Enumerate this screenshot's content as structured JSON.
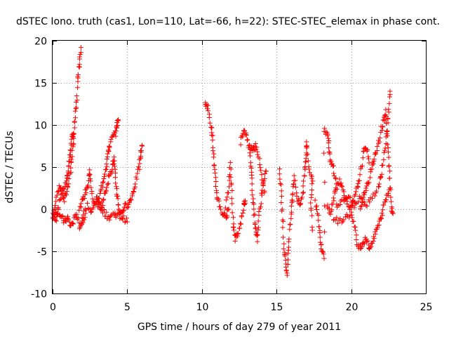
{
  "chart_data": {
    "type": "scatter",
    "title": "dSTEC Iono. truth (cas1, Lon=110, Lat=-66, h=22): STEC-STEC_elemax in phase cont.",
    "xlabel": "GPS time / hours of day 279 of year 2011",
    "ylabel": "dSTEC  / TECUs",
    "xlim": [
      0,
      25
    ],
    "ylim": [
      -10,
      20
    ],
    "xticks": [
      0,
      5,
      10,
      15,
      20,
      25
    ],
    "yticks": [
      -10,
      -5,
      0,
      5,
      10,
      15,
      20
    ],
    "xtick_labels": [
      "0",
      "5",
      "10",
      "15",
      "20",
      "25"
    ],
    "ytick_labels": [
      "-10",
      "-5",
      "0",
      "5",
      "10",
      "15",
      "20"
    ],
    "grid": true,
    "marker": "+",
    "color": "#ff0000",
    "tracks": [
      [
        [
          0.0,
          0.0
        ],
        [
          0.2,
          -1.5
        ],
        [
          0.4,
          0.5
        ],
        [
          0.6,
          2.0
        ],
        [
          0.8,
          1.0
        ],
        [
          1.0,
          2.5
        ],
        [
          1.2,
          4.5
        ],
        [
          1.3,
          6.5
        ],
        [
          1.4,
          8.0
        ],
        [
          1.5,
          10.5
        ],
        [
          1.6,
          12.5
        ],
        [
          1.7,
          15.5
        ],
        [
          1.8,
          17.5
        ],
        [
          1.9,
          19.2
        ]
      ],
      [
        [
          0.1,
          0.2
        ],
        [
          0.3,
          1.5
        ],
        [
          0.5,
          2.8
        ],
        [
          0.7,
          2.0
        ],
        [
          0.9,
          3.0
        ],
        [
          1.0,
          4.0
        ],
        [
          1.1,
          5.5
        ],
        [
          1.2,
          7.0
        ],
        [
          1.3,
          8.5
        ],
        [
          1.4,
          9.0
        ]
      ],
      [
        [
          0.0,
          -1.0
        ],
        [
          0.2,
          -0.5
        ],
        [
          0.4,
          -0.2
        ],
        [
          0.6,
          -1.0
        ],
        [
          0.8,
          -1.5
        ],
        [
          1.0,
          -1.0
        ],
        [
          1.2,
          -2.0
        ],
        [
          1.4,
          -1.5
        ],
        [
          1.6,
          -0.5
        ],
        [
          1.8,
          -2.0
        ],
        [
          2.0,
          -1.5
        ],
        [
          2.2,
          -0.5
        ]
      ],
      [
        [
          1.8,
          0.0
        ],
        [
          2.0,
          1.0
        ],
        [
          2.2,
          2.0
        ],
        [
          2.4,
          3.0
        ],
        [
          2.5,
          4.8
        ],
        [
          2.6,
          2.0
        ],
        [
          2.8,
          0.5
        ],
        [
          3.0,
          1.5
        ],
        [
          3.2,
          0.0
        ]
      ],
      [
        [
          2.0,
          -1.0
        ],
        [
          2.3,
          0.5
        ],
        [
          2.6,
          -0.5
        ],
        [
          2.9,
          1.0
        ],
        [
          3.2,
          0.5
        ],
        [
          3.5,
          -0.5
        ],
        [
          3.8,
          -1.0
        ],
        [
          4.1,
          -0.5
        ],
        [
          4.4,
          -0.8
        ],
        [
          4.7,
          -1.0
        ],
        [
          5.0,
          -1.5
        ]
      ],
      [
        [
          3.0,
          0.5
        ],
        [
          3.2,
          2.0
        ],
        [
          3.4,
          3.5
        ],
        [
          3.6,
          5.0
        ],
        [
          3.7,
          6.5
        ],
        [
          3.8,
          7.5
        ],
        [
          4.0,
          8.5
        ],
        [
          4.2,
          9.0
        ],
        [
          4.3,
          10.0
        ],
        [
          4.4,
          10.5
        ]
      ],
      [
        [
          3.2,
          0.0
        ],
        [
          3.4,
          1.0
        ],
        [
          3.6,
          2.5
        ],
        [
          3.8,
          4.0
        ],
        [
          4.0,
          5.0
        ],
        [
          4.1,
          6.0
        ],
        [
          4.2,
          4.0
        ],
        [
          4.3,
          2.0
        ],
        [
          4.4,
          0.5
        ]
      ],
      [
        [
          4.4,
          0.0
        ],
        [
          4.6,
          -0.5
        ],
        [
          4.8,
          0.3
        ],
        [
          5.0,
          0.5
        ],
        [
          5.2,
          1.0
        ],
        [
          5.4,
          2.0
        ],
        [
          5.6,
          3.5
        ],
        [
          5.8,
          5.0
        ],
        [
          5.9,
          6.5
        ],
        [
          6.0,
          7.5
        ]
      ],
      [
        [
          10.2,
          12.8
        ],
        [
          10.4,
          12.0
        ],
        [
          10.6,
          10.0
        ],
        [
          10.7,
          8.5
        ],
        [
          10.8,
          6.0
        ],
        [
          10.9,
          3.5
        ],
        [
          11.0,
          1.5
        ],
        [
          11.2,
          0.5
        ],
        [
          11.4,
          -0.5
        ],
        [
          11.6,
          -1.0
        ],
        [
          11.8,
          0.0
        ]
      ],
      [
        [
          11.6,
          0.5
        ],
        [
          11.8,
          2.5
        ],
        [
          11.9,
          5.5
        ],
        [
          12.0,
          2.0
        ],
        [
          12.1,
          -1.5
        ],
        [
          12.2,
          -3.5
        ],
        [
          12.4,
          -3.0
        ],
        [
          12.6,
          -1.5
        ],
        [
          12.8,
          0.5
        ],
        [
          12.9,
          1.0
        ]
      ],
      [
        [
          12.6,
          8.0
        ],
        [
          12.8,
          9.5
        ],
        [
          13.0,
          9.0
        ],
        [
          13.2,
          6.5
        ],
        [
          13.3,
          4.5
        ],
        [
          13.4,
          2.0
        ],
        [
          13.5,
          -0.5
        ],
        [
          13.6,
          -2.5
        ],
        [
          13.7,
          -3.5
        ],
        [
          13.8,
          -1.0
        ],
        [
          14.0,
          1.5
        ],
        [
          14.1,
          3.0
        ],
        [
          14.3,
          4.5
        ]
      ],
      [
        [
          13.2,
          7.5
        ],
        [
          13.4,
          7.0
        ],
        [
          13.6,
          7.5
        ],
        [
          13.8,
          6.5
        ],
        [
          14.0,
          4.0
        ],
        [
          14.2,
          2.0
        ]
      ],
      [
        [
          15.2,
          5.0
        ],
        [
          15.3,
          2.0
        ],
        [
          15.4,
          -1.0
        ],
        [
          15.5,
          -4.5
        ],
        [
          15.6,
          -6.0
        ],
        [
          15.7,
          -7.8
        ],
        [
          15.8,
          -5.0
        ],
        [
          15.9,
          -2.0
        ],
        [
          16.0,
          0.5
        ],
        [
          16.1,
          2.0
        ],
        [
          16.2,
          4.0
        ],
        [
          16.4,
          1.0
        ],
        [
          16.6,
          0.5
        ],
        [
          16.8,
          2.0
        ]
      ],
      [
        [
          16.8,
          3.0
        ],
        [
          16.9,
          5.0
        ],
        [
          17.0,
          6.5
        ],
        [
          17.0,
          8.0
        ],
        [
          17.2,
          4.5
        ],
        [
          17.4,
          3.5
        ],
        [
          17.3,
          1.0
        ],
        [
          17.4,
          -2.5
        ]
      ],
      [
        [
          17.6,
          1.0
        ],
        [
          17.8,
          -1.0
        ],
        [
          17.9,
          -3.0
        ],
        [
          18.0,
          -4.5
        ],
        [
          18.2,
          -5.5
        ],
        [
          18.2,
          9.5
        ],
        [
          18.4,
          9.0
        ],
        [
          18.5,
          7.5
        ],
        [
          18.6,
          5.5
        ],
        [
          18.8,
          5.0
        ],
        [
          19.0,
          3.0
        ]
      ],
      [
        [
          18.4,
          0.5
        ],
        [
          18.6,
          -0.5
        ],
        [
          18.8,
          1.0
        ],
        [
          19.0,
          2.5
        ],
        [
          19.2,
          3.5
        ],
        [
          19.4,
          2.5
        ],
        [
          19.6,
          1.5
        ],
        [
          19.8,
          0.5
        ],
        [
          20.0,
          0.0
        ],
        [
          20.2,
          1.0
        ],
        [
          20.4,
          2.5
        ],
        [
          20.6,
          4.0
        ],
        [
          20.8,
          6.5
        ],
        [
          21.0,
          7.5
        ],
        [
          21.2,
          5.5
        ]
      ],
      [
        [
          18.8,
          -1.0
        ],
        [
          19.2,
          -1.5
        ],
        [
          19.6,
          -1.0
        ],
        [
          20.0,
          -0.5
        ],
        [
          20.2,
          -2.0
        ],
        [
          20.4,
          -4.0
        ],
        [
          20.6,
          -4.5
        ],
        [
          20.8,
          -4.0
        ],
        [
          21.0,
          -3.5
        ],
        [
          21.2,
          -4.5
        ],
        [
          21.4,
          -4.0
        ],
        [
          21.6,
          -3.0
        ],
        [
          21.8,
          -2.0
        ],
        [
          22.0,
          -1.0
        ],
        [
          22.2,
          0.5
        ],
        [
          22.4,
          1.5
        ],
        [
          22.6,
          2.5
        ]
      ],
      [
        [
          19.0,
          0.5
        ],
        [
          19.4,
          1.0
        ],
        [
          19.8,
          1.5
        ],
        [
          20.2,
          0.5
        ],
        [
          20.6,
          1.5
        ],
        [
          21.0,
          0.5
        ],
        [
          21.4,
          1.5
        ],
        [
          21.8,
          2.5
        ],
        [
          22.0,
          4.0
        ],
        [
          22.2,
          6.5
        ],
        [
          22.4,
          9.0
        ],
        [
          22.5,
          11.5
        ],
        [
          22.6,
          14.0
        ]
      ],
      [
        [
          20.6,
          0.0
        ],
        [
          20.8,
          1.5
        ],
        [
          21.0,
          2.5
        ],
        [
          21.2,
          3.5
        ],
        [
          21.4,
          5.0
        ],
        [
          21.6,
          6.5
        ],
        [
          21.8,
          7.5
        ],
        [
          22.0,
          9.5
        ],
        [
          22.2,
          10.5
        ],
        [
          22.3,
          11.5
        ],
        [
          22.4,
          9.0
        ],
        [
          22.5,
          6.0
        ],
        [
          22.6,
          3.5
        ],
        [
          22.7,
          0.0
        ],
        [
          22.8,
          -0.5
        ]
      ]
    ]
  }
}
